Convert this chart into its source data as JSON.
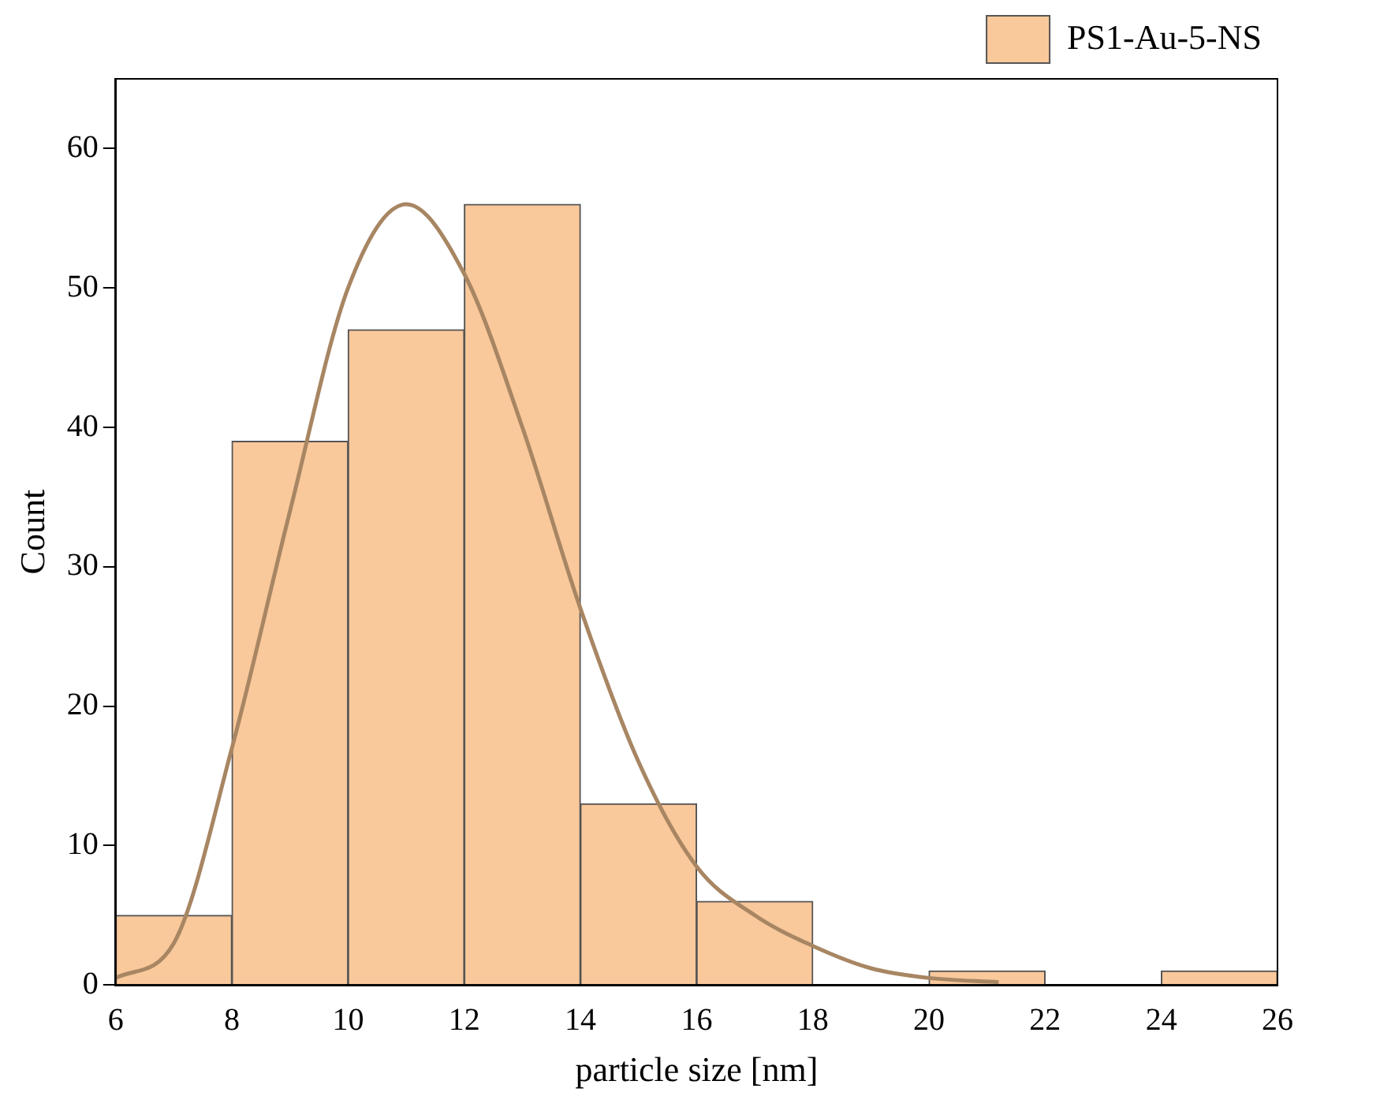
{
  "chart_data": {
    "type": "histogram",
    "xlabel": "particle size [nm]",
    "ylabel": "Count",
    "bins": [
      6,
      8,
      10,
      12,
      14,
      16,
      18,
      20,
      22,
      24,
      26
    ],
    "series": [
      {
        "name": "PS1-Au-5-NS",
        "color": "#f9c89b",
        "values": [
          5,
          39,
          47,
          56,
          13,
          6,
          0,
          1,
          0,
          1
        ]
      },
      {
        "type": "line",
        "color": "#a88663",
        "x": [
          6,
          7,
          8,
          9,
          10,
          11,
          12,
          13,
          14,
          15,
          16,
          17,
          18,
          19,
          20,
          21.2
        ],
        "values": [
          0.5,
          3,
          17,
          34,
          50,
          56,
          51,
          40,
          27,
          16,
          8.5,
          5,
          2.8,
          1.2,
          0.5,
          0.2
        ]
      }
    ],
    "xlim": [
      6,
      26
    ],
    "xticks": [
      6,
      8,
      10,
      12,
      14,
      16,
      18,
      20,
      22,
      24,
      26
    ],
    "ylim": [
      0,
      65
    ],
    "yticks": [
      0,
      10,
      20,
      30,
      40,
      50,
      60
    ],
    "grid": false,
    "legend": "top right",
    "marker": "none"
  }
}
